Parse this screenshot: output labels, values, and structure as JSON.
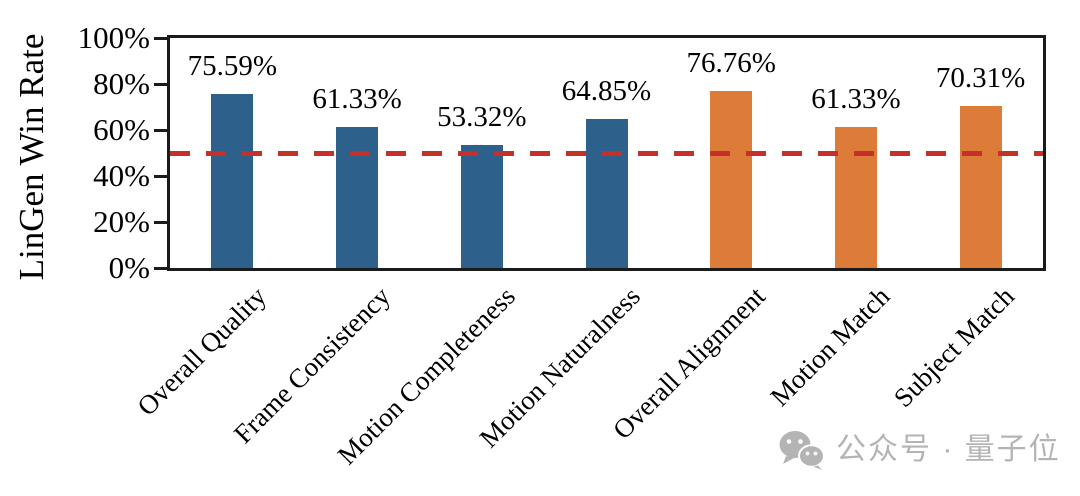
{
  "chart_data": {
    "type": "bar",
    "title": "",
    "xlabel": "",
    "ylabel": "LinGen Win Rate",
    "ylim": [
      0,
      100
    ],
    "grid": false,
    "legend": "none",
    "ytick_values": [
      0,
      20,
      40,
      60,
      80,
      100
    ],
    "ytick_labels": [
      "0%",
      "20%",
      "40%",
      "60%",
      "80%",
      "100%"
    ],
    "categories": [
      "Overall Quality",
      "Frame Consistency",
      "Motion Completeness",
      "Motion Naturalness",
      "Overall Alignment",
      "Motion Match",
      "Subject Match"
    ],
    "values": [
      75.59,
      61.33,
      53.32,
      64.85,
      76.76,
      61.33,
      70.31
    ],
    "value_labels": [
      "75.59%",
      "61.33%",
      "53.32%",
      "64.85%",
      "76.76%",
      "61.33%",
      "70.31%"
    ],
    "bar_colors": [
      "#2e608c",
      "#2e608c",
      "#2e608c",
      "#2e608c",
      "#dd7c38",
      "#dd7c38",
      "#dd7c38"
    ],
    "reference_line": {
      "value": 50,
      "style": "dashed",
      "color": "#c5302b"
    },
    "axis_color": "#1b1b1b"
  },
  "watermark": {
    "icon": "wechat-icon",
    "text": "公众号 · 量子位",
    "color": "#b4b4b4"
  }
}
